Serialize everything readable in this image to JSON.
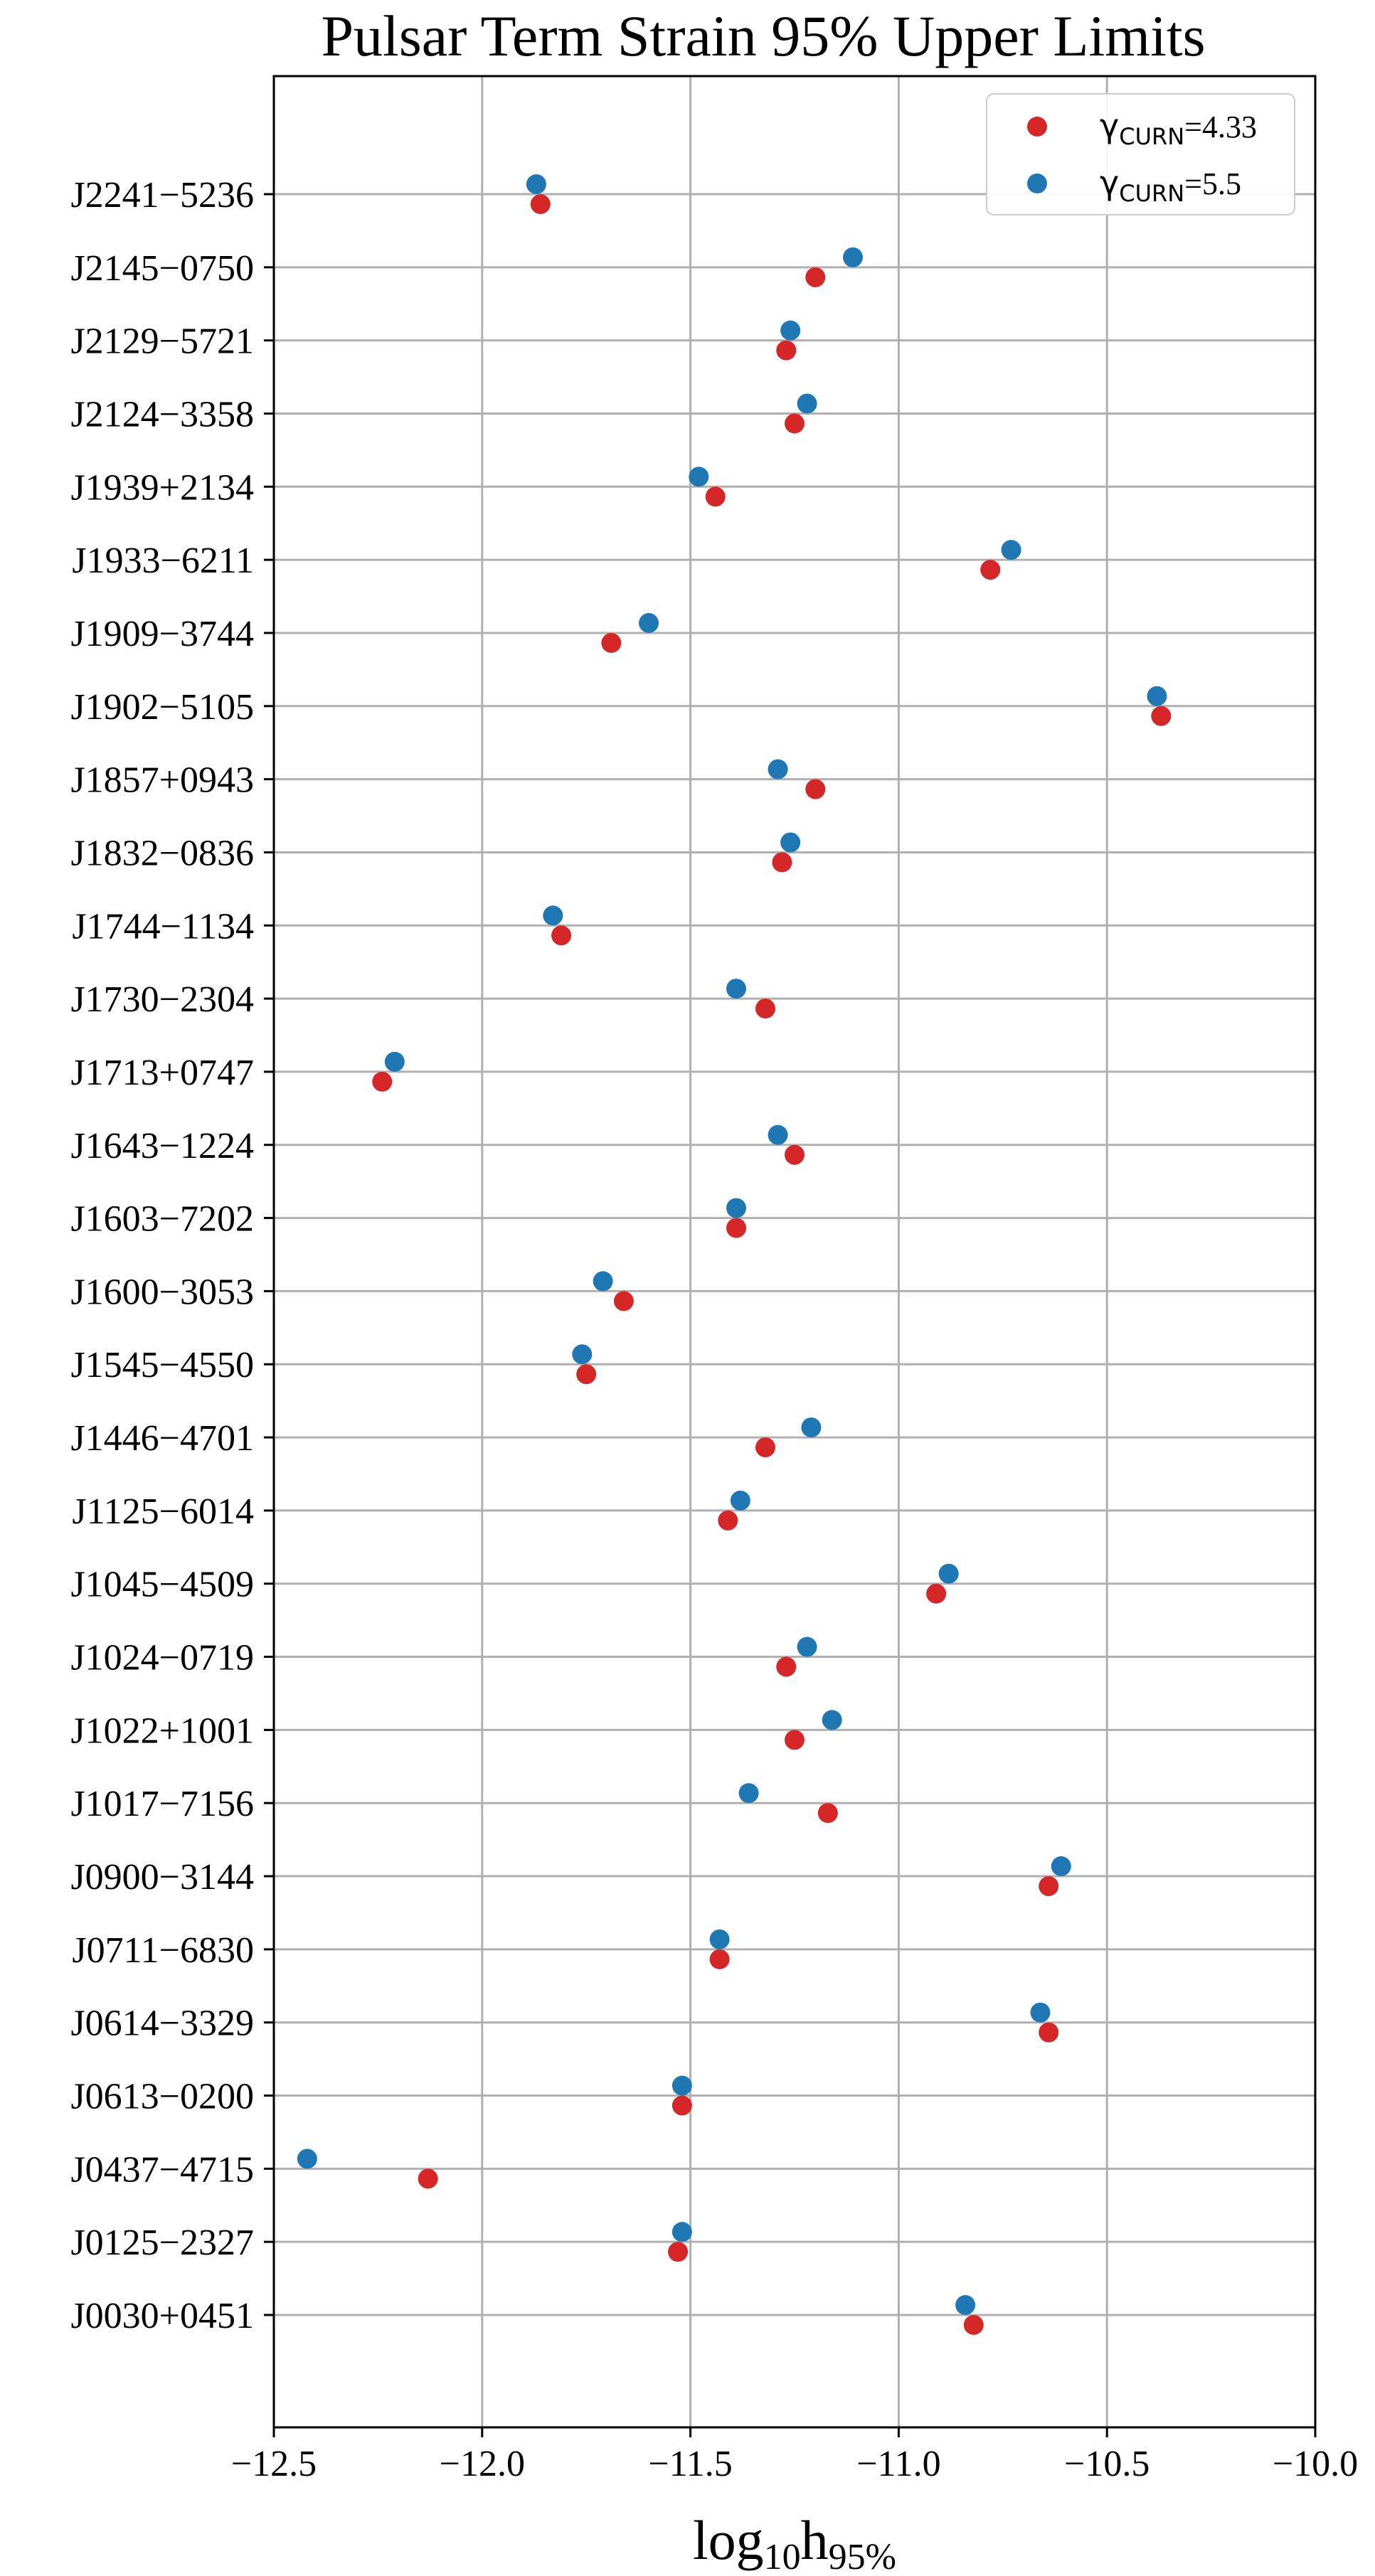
{
  "chart_data": {
    "type": "scatter",
    "title": "Pulsar Term Strain 95% Upper Limits",
    "xlabel": {
      "base": "log",
      "sub1": "10",
      "mid": "h",
      "sub2": "95%"
    },
    "ylabel": "",
    "xlim": [
      -12.5,
      -10.0
    ],
    "xticks": [
      -12.5,
      -12.0,
      -11.5,
      -11.0,
      -10.5,
      -10.0
    ],
    "xtick_labels": [
      "−12.5",
      "−12.0",
      "−11.5",
      "−11.0",
      "−10.5",
      "−10.0"
    ],
    "grid": true,
    "legend_position": "top-right",
    "categories": [
      "J2241−5236",
      "J2145−0750",
      "J2129−5721",
      "J2124−3358",
      "J1939+2134",
      "J1933−6211",
      "J1909−3744",
      "J1902−5105",
      "J1857+0943",
      "J1832−0836",
      "J1744−1134",
      "J1730−2304",
      "J1713+0747",
      "J1643−1224",
      "J1603−7202",
      "J1600−3053",
      "J1545−4550",
      "J1446−4701",
      "J1125−6014",
      "J1045−4509",
      "J1024−0719",
      "J1022+1001",
      "J1017−7156",
      "J0900−3144",
      "J0711−6830",
      "J0614−3329",
      "J0613−0200",
      "J0437−4715",
      "J0125−2327",
      "J0030+0451"
    ],
    "series": [
      {
        "name": {
          "sym": "γ",
          "sub": "CURN",
          "rest": "=4.33"
        },
        "color": "#d62728",
        "values": [
          -11.86,
          -11.2,
          -11.27,
          -11.25,
          -11.44,
          -10.78,
          -11.69,
          -10.37,
          -11.2,
          -11.28,
          -11.81,
          -11.32,
          -12.24,
          -11.25,
          -11.39,
          -11.66,
          -11.75,
          -11.32,
          -11.41,
          -10.91,
          -11.27,
          -11.25,
          -11.17,
          -10.64,
          -11.43,
          -10.64,
          -11.52,
          -12.13,
          -11.53,
          -10.82
        ]
      },
      {
        "name": {
          "sym": "γ",
          "sub": "CURN",
          "rest": "=5.5"
        },
        "color": "#1f77b4",
        "values": [
          -11.87,
          -11.11,
          -11.26,
          -11.22,
          -11.48,
          -10.73,
          -11.6,
          -10.38,
          -11.29,
          -11.26,
          -11.83,
          -11.39,
          -12.21,
          -11.29,
          -11.39,
          -11.71,
          -11.76,
          -11.21,
          -11.38,
          -10.88,
          -11.22,
          -11.16,
          -11.36,
          -10.61,
          -11.43,
          -10.66,
          -11.52,
          -12.42,
          -11.52,
          -10.84
        ]
      }
    ]
  }
}
